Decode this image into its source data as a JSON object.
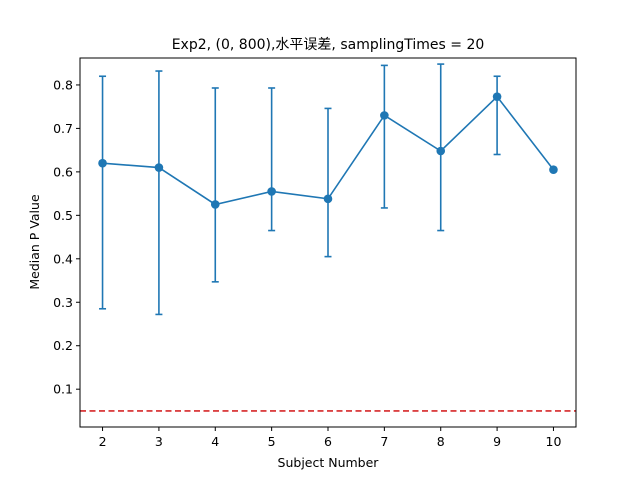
{
  "chart_data": {
    "type": "line",
    "title": "Exp2, (0, 800),水平误差, samplingTimes = 20",
    "xlabel": "Subject Number",
    "ylabel": "Median P Value",
    "x": [
      2,
      3,
      4,
      5,
      6,
      7,
      8,
      9,
      10
    ],
    "xlim": [
      1.6,
      10.4
    ],
    "ylim": [
      0.013,
      0.862
    ],
    "xticks": [
      2,
      3,
      4,
      5,
      6,
      7,
      8,
      9,
      10
    ],
    "yticks": [
      0.1,
      0.2,
      0.3,
      0.4,
      0.5,
      0.6,
      0.7,
      0.8
    ],
    "grid": false,
    "legend": "none",
    "series": [
      {
        "values": [
          0.62,
          0.61,
          0.525,
          0.555,
          0.538,
          0.73,
          0.648,
          0.773,
          0.605
        ],
        "error_low": [
          0.285,
          0.272,
          0.347,
          0.465,
          0.405,
          0.517,
          0.465,
          0.64,
          0.605
        ],
        "error_high": [
          0.82,
          0.832,
          0.793,
          0.793,
          0.746,
          0.845,
          0.848,
          0.82,
          0.605
        ],
        "color": "#1f77b4",
        "marker": "circle"
      }
    ],
    "reference_line": {
      "y": 0.05,
      "color": "#d62728",
      "style": "dashed"
    }
  }
}
